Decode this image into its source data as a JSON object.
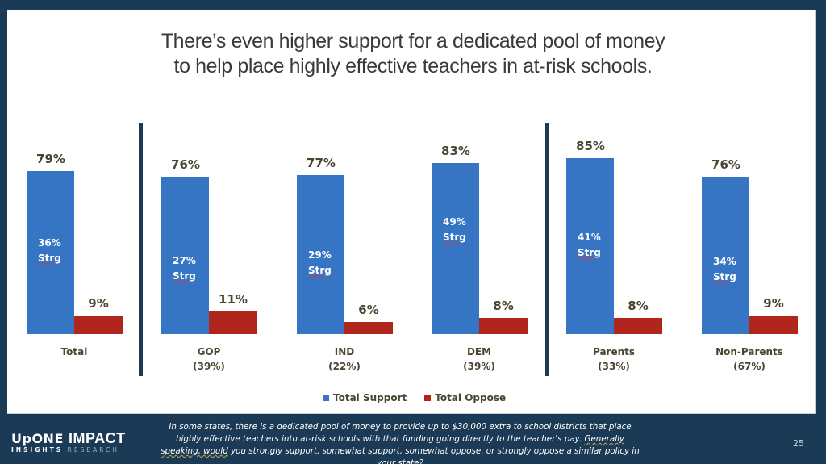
{
  "slide": {
    "title_line1": "There’s even higher support for a dedicated pool of money",
    "title_line2": "to help place highly effective teachers in at-risk schools.",
    "page_number": "25",
    "colors": {
      "background": "#1b3a55",
      "support": "#3674c4",
      "oppose": "#b0261c",
      "label_text": "#4a4530"
    }
  },
  "legend": {
    "support_label": "Total Support",
    "oppose_label": "Total Oppose"
  },
  "groups": [
    {
      "name": "Total",
      "share": "",
      "support": "79%",
      "strong": "36%",
      "strong_label": "Strg",
      "oppose": "9%"
    },
    {
      "name": "GOP",
      "share": "(39%)",
      "support": "76%",
      "strong": "27%",
      "strong_label": "Strg",
      "oppose": "11%"
    },
    {
      "name": "IND",
      "share": "(22%)",
      "support": "77%",
      "strong": "29%",
      "strong_label": "Strg",
      "oppose": "6%"
    },
    {
      "name": "DEM",
      "share": "(39%)",
      "support": "83%",
      "strong": "49%",
      "strong_label": "Strg",
      "oppose": "8%"
    },
    {
      "name": "Parents",
      "share": "(33%)",
      "support": "85%",
      "strong": "41%",
      "strong_label": "Strg",
      "oppose": "8%"
    },
    {
      "name": "Non-Parents",
      "share": "(67%)",
      "support": "76%",
      "strong": "34%",
      "strong_label": "Strg",
      "oppose": "9%"
    }
  ],
  "footer": {
    "logo_line1_a": "UpONE",
    "logo_line1_b": "IMPACT",
    "logo_line2_a": "INSIGHTS",
    "logo_line2_b": "RESEARCH",
    "question_part1": "In some states, there is a dedicated pool of money to provide up to $30,000 extra to school districts that place highly effective teachers into at-risk schools with that funding going directly to the teacher's pay. ",
    "question_part2": "Generally speaking, would",
    "question_part3": " you strongly support, somewhat support, somewhat oppose, or strongly oppose a similar policy in your state?"
  },
  "chart_data": {
    "type": "bar",
    "title": "There’s even higher support for a dedicated pool of money to help place highly effective teachers in at-risk schools.",
    "categories": [
      "Total",
      "GOP (39%)",
      "IND (22%)",
      "DEM (39%)",
      "Parents (33%)",
      "Non-Parents (67%)"
    ],
    "series": [
      {
        "name": "Total Support",
        "color": "#3674c4",
        "values": [
          79,
          76,
          77,
          83,
          85,
          76
        ]
      },
      {
        "name": "Total Oppose",
        "color": "#b0261c",
        "values": [
          9,
          11,
          6,
          8,
          8,
          9
        ]
      }
    ],
    "annotations": {
      "strong_support": [
        36,
        27,
        29,
        49,
        41,
        34
      ],
      "strong_support_label": "Strg"
    },
    "group_dividers_after": [
      "Total",
      "DEM (39%)"
    ],
    "xlabel": "",
    "ylabel": "",
    "ylim": [
      0,
      100
    ],
    "grid": false,
    "legend_position": "bottom"
  }
}
